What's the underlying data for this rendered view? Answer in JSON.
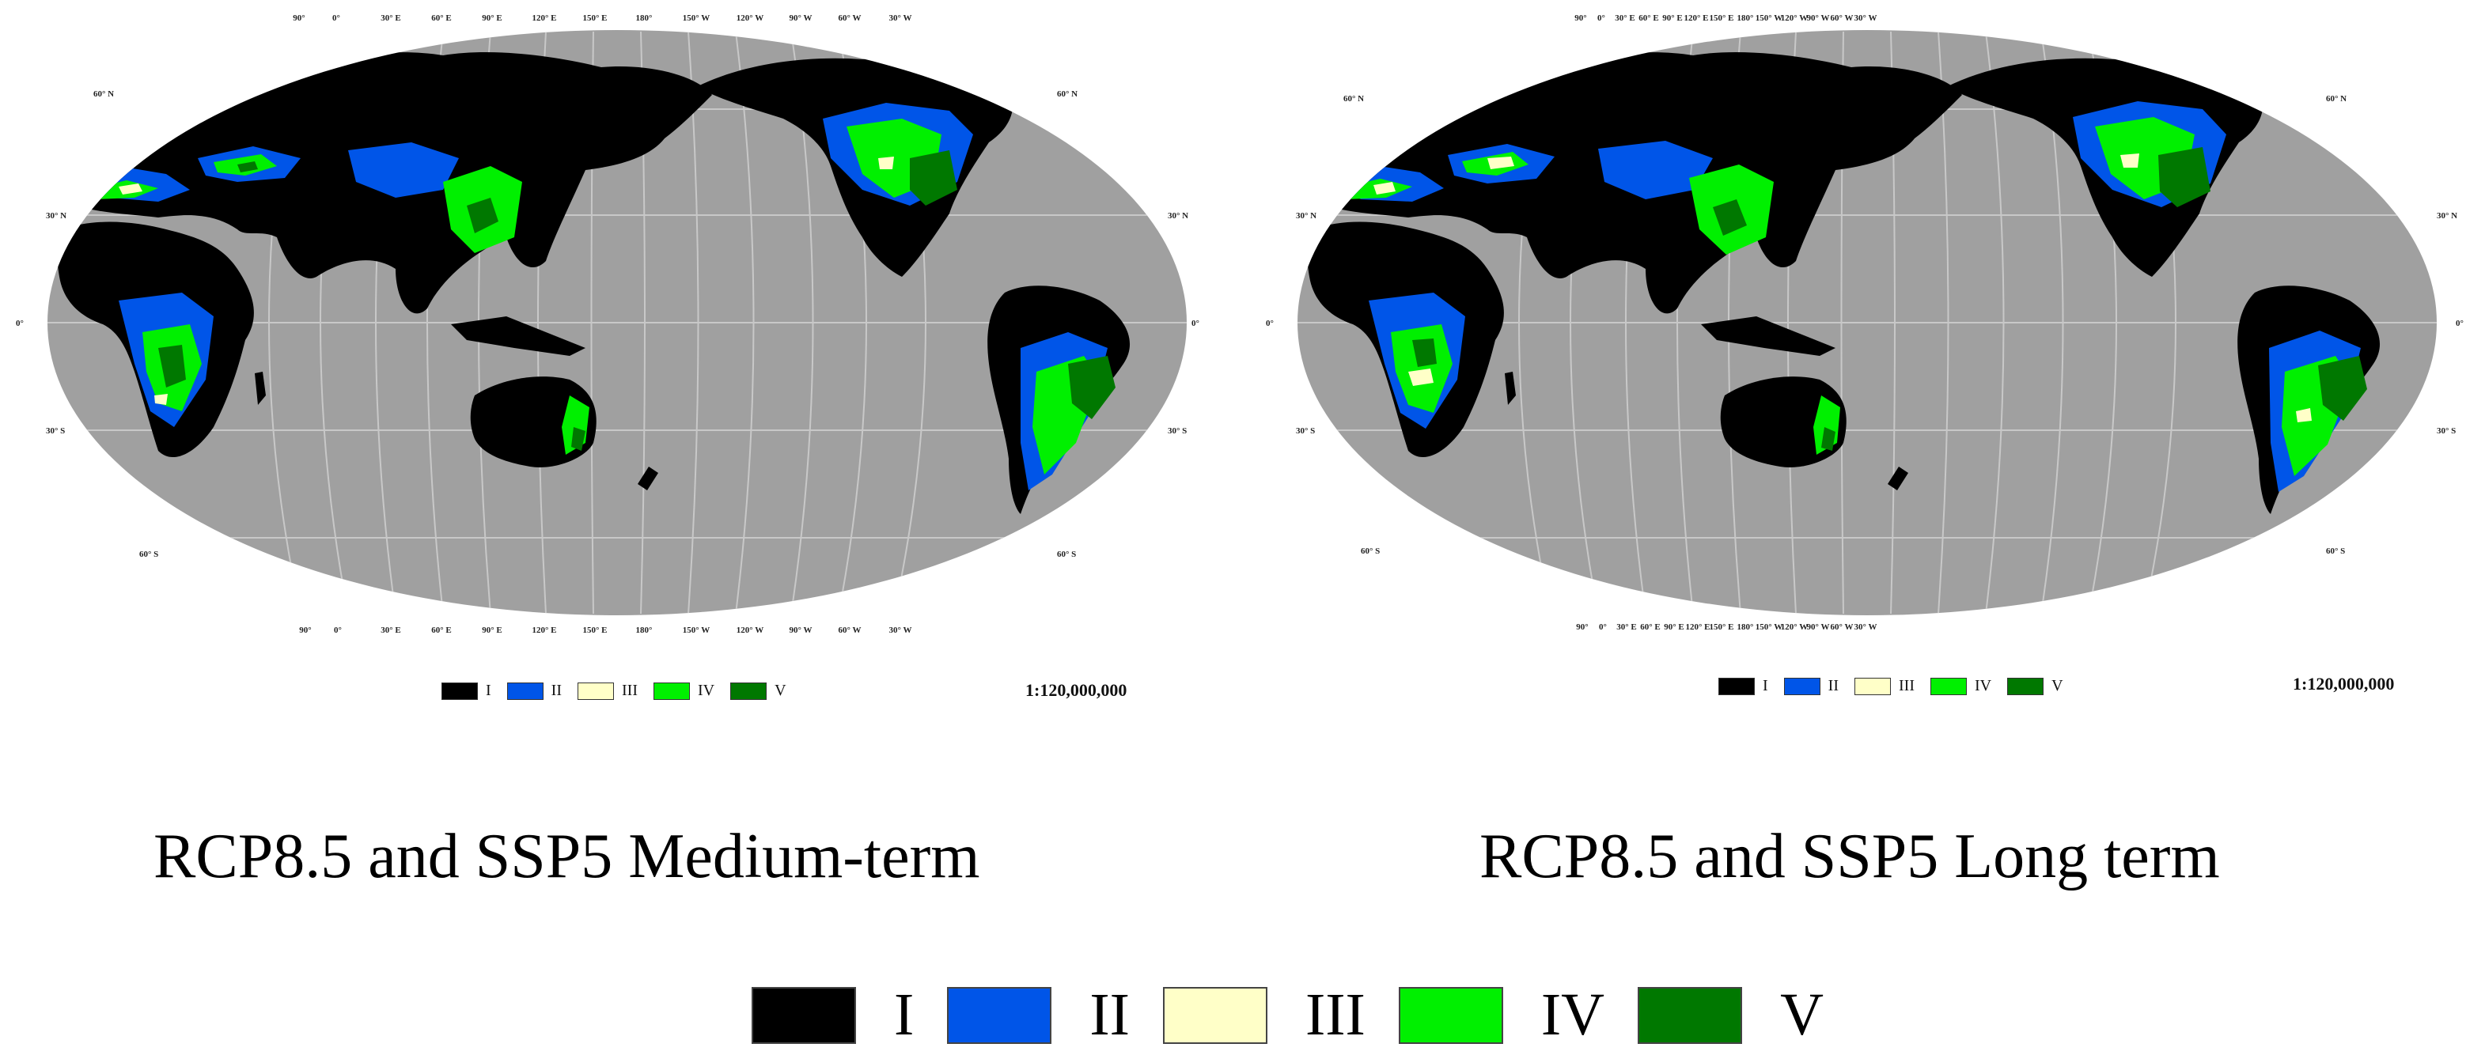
{
  "legend_colors": {
    "I": "#000000",
    "II": "#0055e8",
    "III": "#ffffc8",
    "IV": "#00f000",
    "V": "#007800"
  },
  "ocean_color": "#a0a0a0",
  "maps": [
    {
      "caption": "RCP8.5 and SSP5 Medium-term",
      "scale": "1:120,000,000",
      "lon_labels": [
        "90°",
        "0°",
        "30° E",
        "60° E",
        "90° E",
        "120° E",
        "150° E",
        "180°",
        "150° W",
        "120° W",
        "90° W",
        "60° W",
        "30° W"
      ],
      "lat_labels_left": [
        "60° N",
        "30° N",
        "0°",
        "30° S",
        "60° S"
      ],
      "lat_labels_right": [
        "60° N",
        "30° N",
        "0°",
        "30° S",
        "60° S"
      ],
      "legend": [
        {
          "key": "I",
          "label": "I"
        },
        {
          "key": "II",
          "label": "II"
        },
        {
          "key": "III",
          "label": "III"
        },
        {
          "key": "IV",
          "label": "IV"
        },
        {
          "key": "V",
          "label": "V"
        }
      ]
    },
    {
      "caption": "RCP8.5 and SSP5 Long term",
      "scale": "1:120,000,000",
      "lon_labels": [
        "90°",
        "0°",
        "30° E",
        "60° E",
        "90° E",
        "120° E",
        "150° E",
        "180°",
        "150° W",
        "120° W",
        "90° W",
        "60° W",
        "30° W"
      ],
      "lat_labels_left": [
        "60° N",
        "30° N",
        "0°",
        "30° S",
        "60° S"
      ],
      "lat_labels_right": [
        "60° N",
        "30° N",
        "0°",
        "30° S",
        "60° S"
      ],
      "legend": [
        {
          "key": "I",
          "label": "I"
        },
        {
          "key": "II",
          "label": "II"
        },
        {
          "key": "III",
          "label": "III"
        },
        {
          "key": "IV",
          "label": "IV"
        },
        {
          "key": "V",
          "label": "V"
        }
      ]
    }
  ],
  "main_legend": [
    {
      "key": "I",
      "label": "I"
    },
    {
      "key": "II",
      "label": "II"
    },
    {
      "key": "III",
      "label": "III"
    },
    {
      "key": "IV",
      "label": "IV"
    },
    {
      "key": "V",
      "label": "V"
    }
  ]
}
